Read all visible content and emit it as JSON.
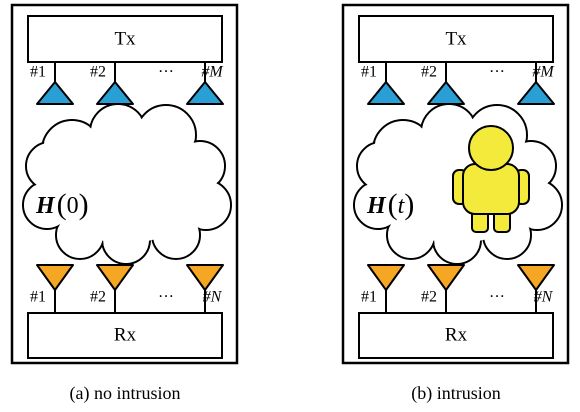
{
  "panels": [
    {
      "tx": "Tx",
      "rx": "Rx",
      "tx_labels": [
        "#1",
        "#2",
        "···",
        "#M"
      ],
      "rx_labels": [
        "#1",
        "#2",
        "···",
        "#N"
      ],
      "channel": {
        "symbol": "H",
        "lparen": "(",
        "arg": "0",
        "rparen": ")"
      },
      "caption": "(a) no intrusion"
    },
    {
      "tx": "Tx",
      "rx": "Rx",
      "tx_labels": [
        "#1",
        "#2",
        "···",
        "#M"
      ],
      "rx_labels": [
        "#1",
        "#2",
        "···",
        "#N"
      ],
      "channel": {
        "symbol": "H",
        "lparen": "(",
        "arg": "t",
        "rparen": ")"
      },
      "caption": "(b) intrusion"
    }
  ]
}
